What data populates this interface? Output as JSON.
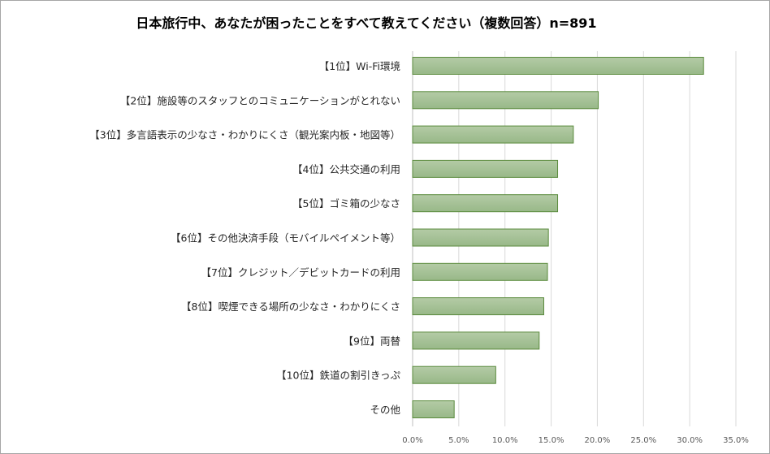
{
  "chart_data": {
    "type": "bar",
    "orientation": "horizontal",
    "title": "日本旅行中、あなたが困ったことをすべて教えてください（複数回答）n=891",
    "categories": [
      "【1位】Wi-Fi環境",
      "【2位】施設等のスタッフとのコミュニケーションがとれない",
      "【3位】多言語表示の少なさ・わかりにくさ（観光案内板・地図等）",
      "【4位】公共交通の利用",
      "【5位】ゴミ箱の少なさ",
      "【6位】その他決済手段（モバイルペイメント等）",
      "【7位】クレジット／デビットカードの利用",
      "【8位】喫煙できる場所の少なさ・わかりにくさ",
      "【9位】両替",
      "【10位】鉄道の割引きっぷ",
      "その他"
    ],
    "values": [
      31.5,
      20.1,
      17.4,
      15.7,
      15.7,
      14.7,
      14.6,
      14.2,
      13.7,
      9.0,
      4.5
    ],
    "unit": "%",
    "xlim": [
      0,
      35
    ],
    "xticks": [
      "0.0%",
      "5.0%",
      "10.0%",
      "15.0%",
      "20.0%",
      "25.0%",
      "30.0%",
      "35.0%"
    ],
    "grid": true,
    "legend": "none",
    "colors": {
      "bar_fill": "#a9c49a",
      "bar_border": "#5a8a3c",
      "grid": "#d9d9d9"
    }
  }
}
